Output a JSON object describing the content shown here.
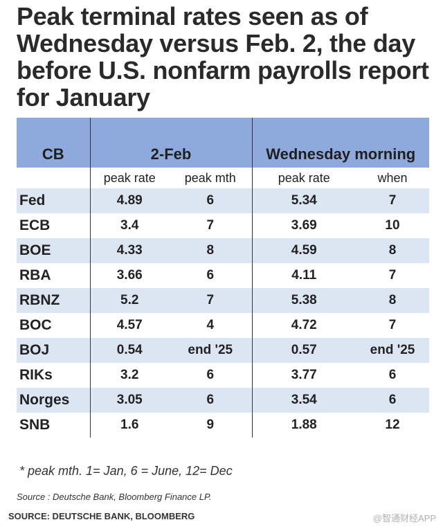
{
  "title": "Peak terminal rates seen as of Wednesday versus Feb. 2, the day before U.S. nonfarm payrolls report for January",
  "chart_data": {
    "type": "table",
    "header_groups": {
      "cb": "CB",
      "group1": "2-Feb",
      "group2": "Wednesday morning"
    },
    "subheaders": [
      "peak rate",
      "peak mth",
      "peak rate",
      "when"
    ],
    "rows": [
      {
        "cb": "Fed",
        "feb_rate": "4.89",
        "feb_mth": "6",
        "wed_rate": "5.34",
        "wed_when": "7"
      },
      {
        "cb": "ECB",
        "feb_rate": "3.4",
        "feb_mth": "7",
        "wed_rate": "3.69",
        "wed_when": "10"
      },
      {
        "cb": "BOE",
        "feb_rate": "4.33",
        "feb_mth": "8",
        "wed_rate": "4.59",
        "wed_when": "8"
      },
      {
        "cb": "RBA",
        "feb_rate": "3.66",
        "feb_mth": "6",
        "wed_rate": "4.11",
        "wed_when": "7"
      },
      {
        "cb": "RBNZ",
        "feb_rate": "5.2",
        "feb_mth": "7",
        "wed_rate": "5.38",
        "wed_when": "8"
      },
      {
        "cb": "BOC",
        "feb_rate": "4.57",
        "feb_mth": "4",
        "wed_rate": "4.72",
        "wed_when": "7"
      },
      {
        "cb": "BOJ",
        "feb_rate": "0.54",
        "feb_mth": "end '25",
        "wed_rate": "0.57",
        "wed_when": "end '25"
      },
      {
        "cb": "RIKs",
        "feb_rate": "3.2",
        "feb_mth": "6",
        "wed_rate": "3.77",
        "wed_when": "6"
      },
      {
        "cb": "Norges",
        "feb_rate": "3.05",
        "feb_mth": "6",
        "wed_rate": "3.54",
        "wed_when": "6"
      },
      {
        "cb": "SNB",
        "feb_rate": "1.6",
        "feb_mth": "9",
        "wed_rate": "1.88",
        "wed_when": "12"
      }
    ],
    "header_color": "#8ea9db",
    "stripe_color": "#dce6f2"
  },
  "footnote": "* peak mth.  1= Jan, 6 = June, 12= Dec",
  "source_inner": "Source : Deutsche Bank, Bloomberg Finance LP.",
  "source": "SOURCE: DEUTSCHE BANK, BLOOMBERG",
  "watermark": "@智通财经APP"
}
